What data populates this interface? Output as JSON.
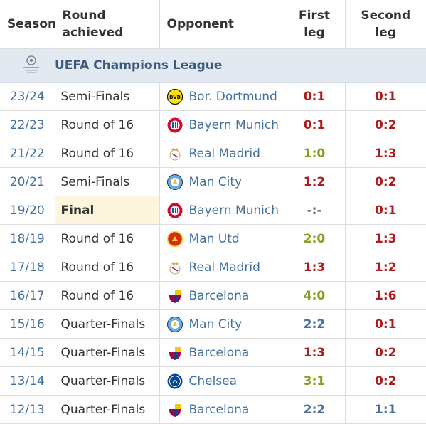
{
  "headers": {
    "season": "Season",
    "round_line1": "Round",
    "round_line2": "achieved",
    "opponent": "Opponent",
    "first_line1": "First",
    "first_line2": "leg",
    "second_line1": "Second",
    "second_line2": "leg"
  },
  "competition": {
    "name": "UEFA Champions League",
    "icon": "champions-league-trophy-icon"
  },
  "colors": {
    "loss": "#b11b1b",
    "win": "#889c1e",
    "draw": "#4a6fa0",
    "link": "#42709f",
    "final_bg": "#fdf5dd",
    "comp_bg": "#e3e9f1"
  },
  "rows": [
    {
      "season": "23/24",
      "round": "Semi-Finals",
      "opponent": "Bor. Dortmund",
      "crest": "dortmund-crest-icon",
      "first": "0:1",
      "first_result": "loss",
      "second": "0:1",
      "second_result": "loss"
    },
    {
      "season": "22/23",
      "round": "Round of 16",
      "opponent": "Bayern Munich",
      "crest": "bayern-crest-icon",
      "first": "0:1",
      "first_result": "loss",
      "second": "0:2",
      "second_result": "loss"
    },
    {
      "season": "21/22",
      "round": "Round of 16",
      "opponent": "Real Madrid",
      "crest": "real-madrid-crest-icon",
      "first": "1:0",
      "first_result": "win",
      "second": "1:3",
      "second_result": "loss"
    },
    {
      "season": "20/21",
      "round": "Semi-Finals",
      "opponent": "Man City",
      "crest": "man-city-crest-icon",
      "first": "1:2",
      "first_result": "loss",
      "second": "0:2",
      "second_result": "loss"
    },
    {
      "season": "19/20",
      "round": "Final",
      "opponent": "Bayern Munich",
      "crest": "bayern-crest-icon",
      "first": "-:-",
      "first_result": "none",
      "second": "0:1",
      "second_result": "loss",
      "final": true
    },
    {
      "season": "18/19",
      "round": "Round of 16",
      "opponent": "Man Utd",
      "crest": "man-utd-crest-icon",
      "first": "2:0",
      "first_result": "win",
      "second": "1:3",
      "second_result": "loss"
    },
    {
      "season": "17/18",
      "round": "Round of 16",
      "opponent": "Real Madrid",
      "crest": "real-madrid-crest-icon",
      "first": "1:3",
      "first_result": "loss",
      "second": "1:2",
      "second_result": "loss"
    },
    {
      "season": "16/17",
      "round": "Round of 16",
      "opponent": "Barcelona",
      "crest": "barcelona-crest-icon",
      "first": "4:0",
      "first_result": "win",
      "second": "1:6",
      "second_result": "loss"
    },
    {
      "season": "15/16",
      "round": "Quarter-Finals",
      "opponent": "Man City",
      "crest": "man-city-crest-icon",
      "first": "2:2",
      "first_result": "draw",
      "second": "0:1",
      "second_result": "loss"
    },
    {
      "season": "14/15",
      "round": "Quarter-Finals",
      "opponent": "Barcelona",
      "crest": "barcelona-crest-icon",
      "first": "1:3",
      "first_result": "loss",
      "second": "0:2",
      "second_result": "loss"
    },
    {
      "season": "13/14",
      "round": "Quarter-Finals",
      "opponent": "Chelsea",
      "crest": "chelsea-crest-icon",
      "first": "3:1",
      "first_result": "win",
      "second": "0:2",
      "second_result": "loss"
    },
    {
      "season": "12/13",
      "round": "Quarter-Finals",
      "opponent": "Barcelona",
      "crest": "barcelona-crest-icon",
      "first": "2:2",
      "first_result": "draw",
      "second": "1:1",
      "second_result": "draw"
    }
  ]
}
